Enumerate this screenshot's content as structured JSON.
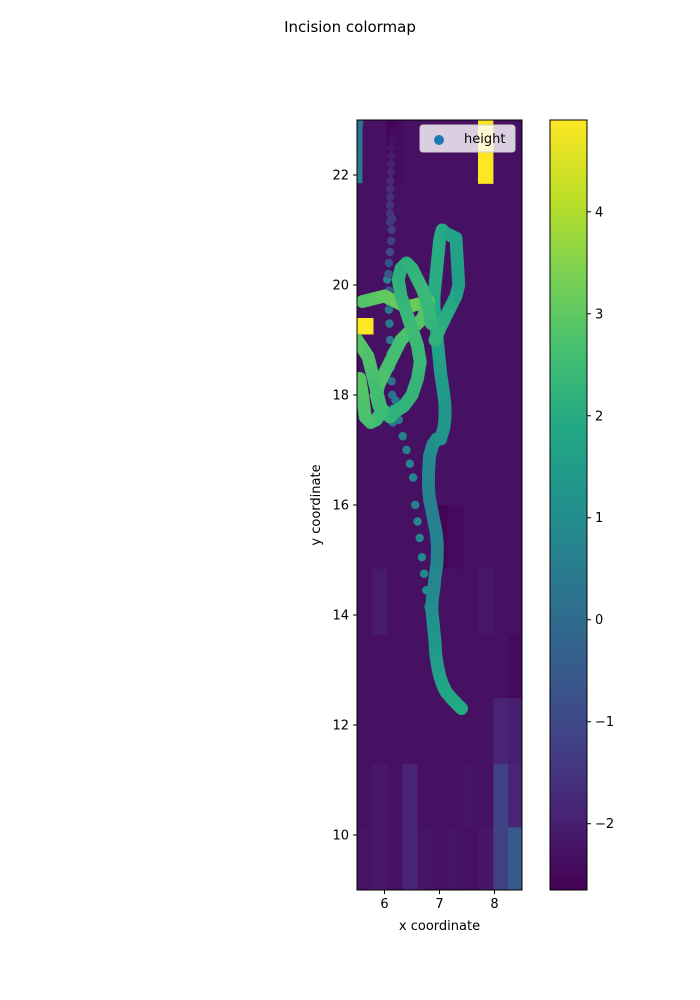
{
  "figure": {
    "title": "Incision colormap"
  },
  "chart_data": {
    "type": "scatter",
    "title": "Incision colormap",
    "xlabel": "x coordinate",
    "ylabel": "y coordinate",
    "xlim": [
      5.5,
      8.5
    ],
    "ylim": [
      9.0,
      23.0
    ],
    "xticks": [
      6,
      7,
      8
    ],
    "yticks": [
      10,
      12,
      14,
      16,
      18,
      20,
      22
    ],
    "legend": {
      "label": "height",
      "position": "top-right",
      "marker_color": "#1f77b4"
    },
    "colorbar": {
      "colormap": "viridis",
      "range": [
        -2.65,
        4.9
      ],
      "ticks": [
        -2,
        -1,
        0,
        1,
        2,
        3,
        4
      ],
      "tick_labels": [
        "−2",
        "−1",
        "0",
        "1",
        "2",
        "3",
        "4"
      ]
    },
    "background_raster": {
      "description": "height grid drawn behind the scatter",
      "x_edges": [
        5.5,
        5.78,
        6.05,
        6.33,
        6.6,
        6.88,
        7.15,
        7.43,
        7.7,
        7.98,
        8.25,
        8.5
      ],
      "y_edges": [
        9.0,
        10.15,
        11.3,
        12.5,
        13.65,
        14.85,
        16.0,
        17.15,
        18.3,
        19.5,
        20.65,
        21.85,
        23.0
      ],
      "values": [
        [
          -2.25,
          -2.15,
          -2.3,
          -1.9,
          -2.25,
          -2.3,
          -2.25,
          -2.3,
          -2.2,
          -1.2,
          -0.5
        ],
        [
          -2.3,
          -2.15,
          -2.3,
          -1.9,
          -2.3,
          -2.3,
          -2.3,
          -2.25,
          -2.3,
          -1.2,
          -1.9
        ],
        [
          -2.3,
          -2.3,
          -2.3,
          -2.3,
          -2.3,
          -2.3,
          -2.3,
          -2.3,
          -2.3,
          -1.9,
          -2.0
        ],
        [
          -2.3,
          -2.3,
          -2.3,
          -2.3,
          -2.3,
          -2.3,
          -2.3,
          -2.3,
          -2.3,
          -2.3,
          -2.45
        ],
        [
          -2.3,
          -2.1,
          -2.3,
          -2.3,
          -2.3,
          -2.3,
          -2.3,
          -2.3,
          -2.15,
          -2.3,
          -2.3
        ],
        [
          -2.3,
          -2.3,
          -2.3,
          -2.3,
          -2.3,
          -2.3,
          -2.45,
          -2.3,
          -2.3,
          -2.3,
          -2.3
        ],
        [
          -2.3,
          -2.3,
          -2.3,
          -2.3,
          -2.3,
          -2.3,
          -2.3,
          -2.3,
          -2.3,
          -2.3,
          -2.3
        ],
        [
          -2.3,
          -2.3,
          -2.3,
          -2.3,
          -2.3,
          -2.3,
          -2.3,
          -2.3,
          -2.3,
          -2.3,
          -2.3
        ],
        [
          -2.3,
          -2.3,
          -2.3,
          -2.3,
          -2.3,
          -2.3,
          -2.3,
          -2.3,
          -2.3,
          -2.3,
          -2.3
        ],
        [
          -2.3,
          -2.3,
          -2.3,
          -2.3,
          -2.3,
          -2.3,
          -2.3,
          -2.3,
          -2.3,
          -2.3,
          -2.3
        ],
        [
          -2.3,
          -2.3,
          -2.3,
          -2.3,
          -2.3,
          -2.3,
          -2.3,
          -2.3,
          -2.3,
          -2.3,
          -2.3
        ],
        [
          -2.3,
          -2.3,
          -2.4,
          -2.3,
          -2.3,
          -2.3,
          -2.3,
          -2.3,
          4.9,
          -2.3,
          -2.3
        ]
      ]
    },
    "highlight_cells": [
      {
        "x": [
          5.5,
          5.6
        ],
        "y": [
          21.85,
          23.0
        ],
        "value": 0.3
      },
      {
        "x": [
          6.05,
          6.2
        ],
        "y": [
          21.85,
          23.0
        ],
        "value": -2.6
      },
      {
        "x": [
          6.95,
          7.15
        ],
        "y": [
          14.85,
          16.0
        ],
        "value": -2.6
      },
      {
        "x": [
          5.5,
          5.8
        ],
        "y": [
          19.1,
          19.4
        ],
        "value": 4.9
      }
    ],
    "series": [
      {
        "name": "height",
        "style": "dotted-path",
        "x": [
          6.05,
          6.07,
          6.08,
          6.09,
          6.1,
          6.11,
          6.12,
          6.13,
          6.14,
          6.15,
          6.15,
          6.14,
          6.13,
          6.12,
          6.1,
          6.08,
          6.07,
          6.08,
          6.1,
          6.14,
          6.2,
          6.26,
          6.33,
          6.4,
          6.46,
          6.52,
          6.56,
          6.6,
          6.64,
          6.68,
          6.72,
          6.76,
          6.8,
          6.86,
          6.9
        ],
        "y": [
          20.1,
          19.8,
          19.55,
          19.3,
          19.0,
          18.75,
          18.5,
          18.25,
          18.0,
          17.75,
          17.5,
          21.2,
          21.0,
          20.8,
          20.6,
          20.4,
          20.2,
          19.9,
          19.65,
          18.8,
          17.9,
          17.55,
          17.25,
          17.0,
          16.75,
          16.5,
          16.0,
          15.7,
          15.4,
          15.05,
          14.75,
          14.45,
          14.15,
          13.85,
          13.6
        ],
        "values": [
          0.7,
          0.5,
          0.4,
          0.4,
          0.3,
          0.3,
          0.3,
          0.2,
          0.2,
          0.2,
          0.2,
          -1.4,
          -1.3,
          -1.2,
          -1.0,
          -0.8,
          -0.6,
          -0.4,
          -0.2,
          0.1,
          0.4,
          0.5,
          0.6,
          0.6,
          0.7,
          0.7,
          0.7,
          0.8,
          0.8,
          0.9,
          0.9,
          1.0,
          1.1,
          1.2,
          1.3
        ]
      },
      {
        "name": "height",
        "style": "thick-path",
        "x": [
          7.4,
          7.35,
          7.25,
          7.12,
          7.05,
          7.0,
          6.96,
          6.93,
          6.92,
          6.9,
          6.88,
          6.86,
          6.87,
          6.9,
          6.92,
          6.95,
          6.96,
          6.96,
          6.94,
          6.9,
          6.86,
          6.82,
          6.8,
          6.8,
          6.82,
          6.88,
          6.95,
          7.02,
          7.08,
          7.1,
          7.1,
          7.08,
          7.05,
          7.02,
          7.0,
          6.98,
          6.96,
          6.94,
          6.92,
          6.9,
          6.9,
          6.92,
          6.94,
          6.96,
          6.98,
          7.0,
          7.02,
          7.05,
          7.1,
          7.2,
          7.3,
          7.35,
          7.3,
          7.2,
          7.1,
          7.0,
          6.92
        ],
        "y": [
          12.3,
          12.35,
          12.45,
          12.6,
          12.75,
          12.9,
          13.1,
          13.3,
          13.5,
          13.7,
          13.9,
          14.1,
          14.3,
          14.5,
          14.7,
          14.9,
          15.1,
          15.3,
          15.5,
          15.7,
          15.9,
          16.1,
          16.3,
          16.6,
          16.9,
          17.1,
          17.2,
          17.2,
          17.4,
          17.6,
          17.8,
          18.0,
          18.2,
          18.4,
          18.6,
          18.8,
          19.0,
          19.2,
          19.4,
          19.6,
          19.8,
          20.0,
          20.2,
          20.4,
          20.6,
          20.8,
          20.9,
          21.0,
          20.95,
          20.9,
          20.85,
          20.0,
          19.8,
          19.6,
          19.4,
          19.2,
          19.0
        ],
        "values": [
          1.9,
          1.9,
          1.9,
          1.8,
          1.8,
          1.7,
          1.6,
          1.5,
          1.4,
          1.3,
          1.2,
          1.1,
          1.0,
          0.9,
          0.8,
          0.8,
          0.7,
          0.7,
          0.7,
          0.7,
          0.6,
          0.6,
          0.7,
          0.8,
          0.9,
          1.0,
          1.1,
          1.2,
          1.3,
          1.3,
          1.3,
          1.4,
          1.5,
          1.5,
          1.6,
          1.7,
          1.7,
          1.8,
          1.8,
          1.9,
          1.9,
          2.0,
          2.0,
          2.0,
          2.0,
          2.0,
          2.0,
          2.0,
          1.9,
          1.8,
          1.7,
          1.6,
          1.7,
          1.9,
          2.0,
          2.1,
          2.2
        ]
      },
      {
        "name": "height",
        "style": "thick-path",
        "x": [
          5.6,
          5.8,
          6.0,
          6.2,
          6.4,
          6.6,
          6.8,
          6.7,
          6.5,
          6.3,
          6.2,
          6.1,
          6.0,
          5.9,
          5.85,
          5.9,
          6.0,
          6.1,
          6.2,
          6.35,
          6.5,
          6.6,
          6.65,
          6.6,
          6.5,
          6.4,
          6.3,
          6.25,
          6.3,
          6.4,
          6.5,
          6.6,
          6.7,
          6.8,
          6.85
        ],
        "y": [
          19.7,
          19.75,
          19.8,
          19.7,
          19.6,
          19.65,
          19.7,
          19.4,
          19.2,
          19.0,
          18.8,
          18.6,
          18.4,
          18.2,
          18.0,
          17.8,
          17.7,
          17.6,
          17.7,
          17.8,
          18.0,
          18.3,
          18.6,
          18.9,
          19.2,
          19.5,
          19.8,
          20.1,
          20.3,
          20.4,
          20.3,
          20.1,
          19.9,
          19.6,
          19.3
        ],
        "values": [
          2.8,
          2.9,
          3.0,
          3.1,
          3.2,
          3.2,
          3.0,
          2.9,
          2.8,
          2.7,
          2.6,
          2.6,
          2.7,
          2.8,
          2.8,
          2.6,
          2.4,
          2.3,
          2.2,
          2.2,
          2.3,
          2.3,
          2.4,
          2.4,
          2.5,
          2.4,
          2.3,
          2.2,
          2.1,
          2.1,
          2.2,
          2.3,
          2.4,
          2.4,
          2.3
        ]
      },
      {
        "name": "height",
        "style": "thick-path",
        "x": [
          5.5,
          5.6,
          5.7,
          5.75,
          5.8,
          5.85,
          5.9,
          5.95,
          5.85,
          5.75,
          5.65,
          5.6,
          5.55
        ],
        "y": [
          19.0,
          18.85,
          18.7,
          18.5,
          18.3,
          18.1,
          17.9,
          17.7,
          17.55,
          17.5,
          17.6,
          18.0,
          18.3
        ],
        "values": [
          2.9,
          2.9,
          2.8,
          2.8,
          2.7,
          2.6,
          2.6,
          2.5,
          2.5,
          2.6,
          2.7,
          2.8,
          2.9
        ]
      },
      {
        "name": "height",
        "style": "dotted-path",
        "x": [
          5.5,
          5.5,
          5.5,
          5.5,
          5.5,
          5.5,
          5.52,
          5.53,
          5.54
        ],
        "y": [
          21.95,
          22.1,
          22.25,
          22.4,
          22.55,
          22.7,
          22.8,
          22.9,
          22.95
        ],
        "values": [
          0.5,
          0.5,
          0.4,
          0.4,
          0.3,
          0.3,
          0.3,
          0.2,
          0.2
        ]
      },
      {
        "name": "height",
        "style": "dotted-path",
        "x": [
          6.15,
          6.14,
          6.13,
          6.13,
          6.12,
          6.12,
          6.11,
          6.1,
          6.1,
          6.1,
          6.1,
          6.1
        ],
        "y": [
          22.8,
          22.65,
          22.5,
          22.35,
          22.2,
          22.05,
          21.9,
          21.75,
          21.6,
          21.45,
          21.3,
          21.15
        ],
        "values": [
          -2.4,
          -2.3,
          -2.2,
          -2.1,
          -2.0,
          -1.9,
          -1.8,
          -1.7,
          -1.6,
          -1.5,
          -1.5,
          -1.4
        ]
      }
    ]
  }
}
